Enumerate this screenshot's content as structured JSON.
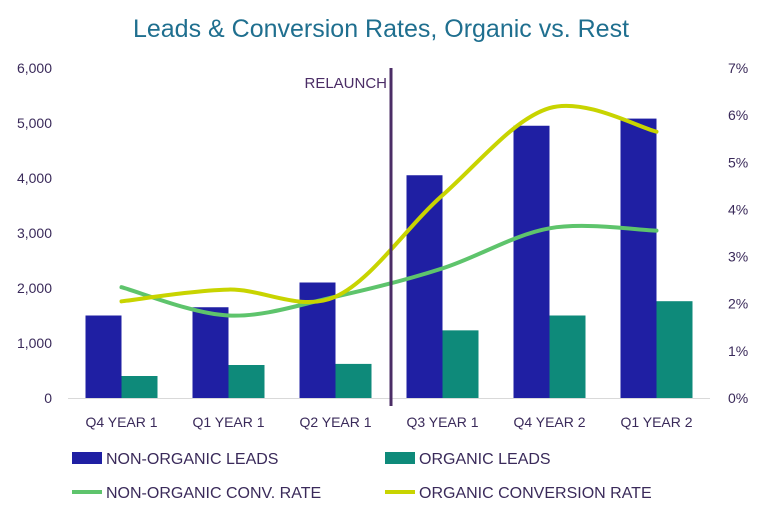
{
  "chart_data": {
    "type": "bar",
    "title": "Leads & Conversion Rates, Organic vs. Rest",
    "categories": [
      "Q4 YEAR 1",
      "Q1 YEAR 1",
      "Q2 YEAR 1",
      "Q3 YEAR 1",
      "Q4 YEAR 2",
      "Q1 YEAR 2"
    ],
    "series": [
      {
        "name": "NON-ORGANIC LEADS",
        "kind": "bar",
        "axis": "left",
        "color": "#1f1fa3",
        "values": [
          1500,
          1650,
          2100,
          4050,
          4950,
          5080
        ]
      },
      {
        "name": "ORGANIC LEADS",
        "kind": "bar",
        "axis": "left",
        "color": "#0e8a7a",
        "values": [
          400,
          600,
          620,
          1230,
          1500,
          1760
        ]
      },
      {
        "name": "NON-ORGANIC CONV. RATE",
        "kind": "line",
        "axis": "right",
        "color": "#5ec46c",
        "values": [
          2.35,
          1.75,
          2.15,
          2.75,
          3.6,
          3.55
        ]
      },
      {
        "name": "ORGANIC CONVERSION RATE",
        "kind": "line",
        "axis": "right",
        "color": "#c8d400",
        "values": [
          2.05,
          2.3,
          2.15,
          4.3,
          6.15,
          5.65
        ]
      }
    ],
    "y_left": {
      "min": 0,
      "max": 6000,
      "ticks": [
        "0",
        "1,000",
        "2,000",
        "3,000",
        "4,000",
        "5,000",
        "6,000"
      ]
    },
    "y_right": {
      "min": 0,
      "max": 7,
      "ticks": [
        "0%",
        "1%",
        "2%",
        "3%",
        "4%",
        "5%",
        "6%",
        "7%"
      ]
    },
    "annotation": {
      "label": "RELAUNCH",
      "color": "#4b2d66"
    },
    "grid": false,
    "legend_position": "bottom"
  }
}
